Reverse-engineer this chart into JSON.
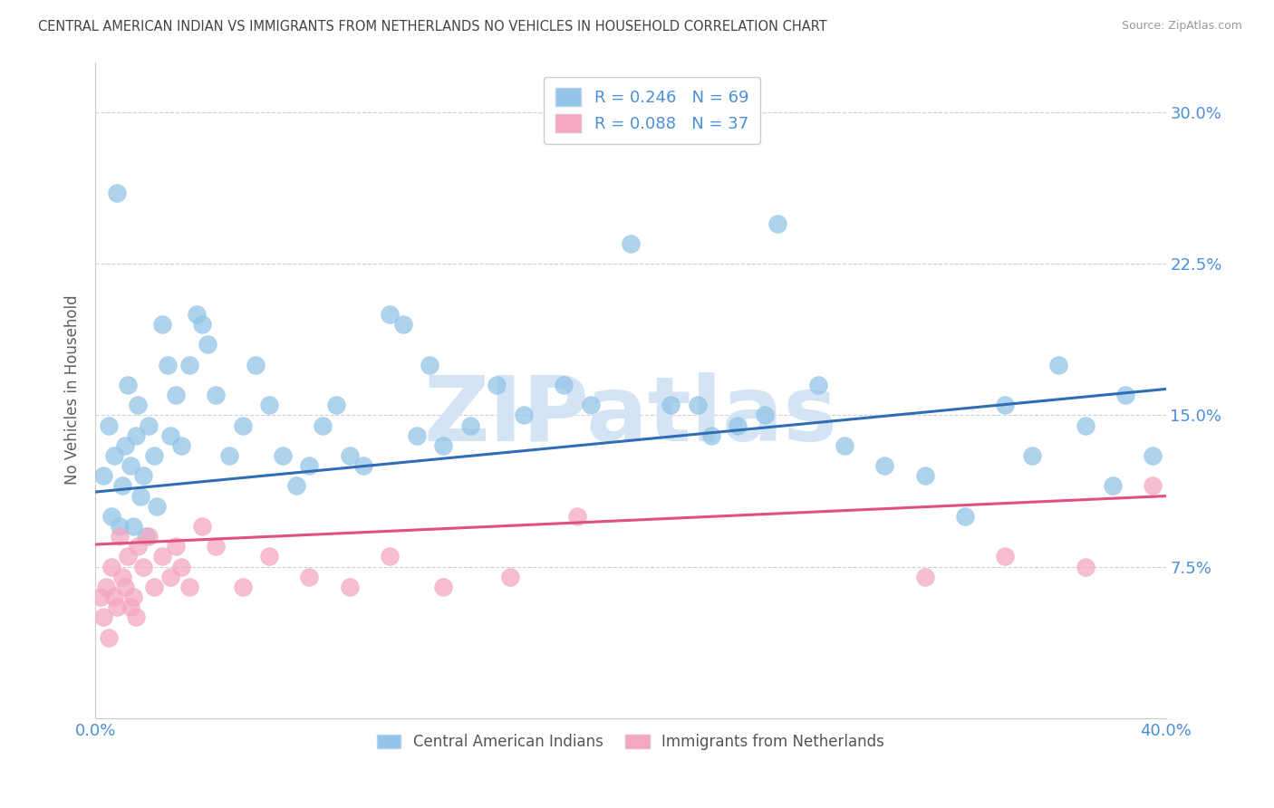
{
  "title": "CENTRAL AMERICAN INDIAN VS IMMIGRANTS FROM NETHERLANDS NO VEHICLES IN HOUSEHOLD CORRELATION CHART",
  "source": "Source: ZipAtlas.com",
  "ylabel": "No Vehicles in Household",
  "xlim": [
    0.0,
    0.4
  ],
  "ylim": [
    0.0,
    0.325
  ],
  "xticks": [
    0.0,
    0.1,
    0.2,
    0.3,
    0.4
  ],
  "xticklabels": [
    "0.0%",
    "",
    "",
    "",
    "40.0%"
  ],
  "yticks": [
    0.0,
    0.075,
    0.15,
    0.225,
    0.3
  ],
  "yticklabels_right": [
    "",
    "7.5%",
    "15.0%",
    "22.5%",
    "30.0%"
  ],
  "legend1_label": "R = 0.246   N = 69",
  "legend2_label": "R = 0.088   N = 37",
  "scatter1_color": "#93c5e8",
  "scatter2_color": "#f4a8c0",
  "trend1_color": "#2f6db5",
  "trend2_color": "#e05080",
  "watermark": "ZIPatlas",
  "watermark_color": "#d4e4f4",
  "background_color": "#ffffff",
  "grid_color": "#d0d0d0",
  "title_color": "#444444",
  "axis_label_color": "#606060",
  "tick_label_color": "#4a90d9",
  "legend_text_color": "#4a90d9",
  "blue_trend_start": 0.112,
  "blue_trend_end": 0.163,
  "pink_trend_start": 0.086,
  "pink_trend_end": 0.11,
  "blue_x": [
    0.003,
    0.005,
    0.006,
    0.007,
    0.008,
    0.009,
    0.01,
    0.011,
    0.012,
    0.013,
    0.014,
    0.015,
    0.016,
    0.017,
    0.018,
    0.019,
    0.02,
    0.022,
    0.023,
    0.025,
    0.027,
    0.028,
    0.03,
    0.032,
    0.035,
    0.038,
    0.04,
    0.042,
    0.045,
    0.05,
    0.055,
    0.06,
    0.065,
    0.07,
    0.075,
    0.08,
    0.085,
    0.09,
    0.095,
    0.1,
    0.11,
    0.115,
    0.12,
    0.125,
    0.13,
    0.14,
    0.15,
    0.16,
    0.175,
    0.185,
    0.2,
    0.215,
    0.225,
    0.23,
    0.24,
    0.25,
    0.255,
    0.27,
    0.28,
    0.295,
    0.31,
    0.325,
    0.34,
    0.35,
    0.36,
    0.37,
    0.38,
    0.385,
    0.395
  ],
  "blue_y": [
    0.12,
    0.145,
    0.1,
    0.13,
    0.26,
    0.095,
    0.115,
    0.135,
    0.165,
    0.125,
    0.095,
    0.14,
    0.155,
    0.11,
    0.12,
    0.09,
    0.145,
    0.13,
    0.105,
    0.195,
    0.175,
    0.14,
    0.16,
    0.135,
    0.175,
    0.2,
    0.195,
    0.185,
    0.16,
    0.13,
    0.145,
    0.175,
    0.155,
    0.13,
    0.115,
    0.125,
    0.145,
    0.155,
    0.13,
    0.125,
    0.2,
    0.195,
    0.14,
    0.175,
    0.135,
    0.145,
    0.165,
    0.15,
    0.165,
    0.155,
    0.235,
    0.155,
    0.155,
    0.14,
    0.145,
    0.15,
    0.245,
    0.165,
    0.135,
    0.125,
    0.12,
    0.1,
    0.155,
    0.13,
    0.175,
    0.145,
    0.115,
    0.16,
    0.13
  ],
  "pink_x": [
    0.002,
    0.003,
    0.004,
    0.005,
    0.006,
    0.007,
    0.008,
    0.009,
    0.01,
    0.011,
    0.012,
    0.013,
    0.014,
    0.015,
    0.016,
    0.018,
    0.02,
    0.022,
    0.025,
    0.028,
    0.03,
    0.032,
    0.035,
    0.04,
    0.045,
    0.055,
    0.065,
    0.08,
    0.095,
    0.11,
    0.13,
    0.155,
    0.18,
    0.31,
    0.34,
    0.37,
    0.395
  ],
  "pink_y": [
    0.06,
    0.05,
    0.065,
    0.04,
    0.075,
    0.06,
    0.055,
    0.09,
    0.07,
    0.065,
    0.08,
    0.055,
    0.06,
    0.05,
    0.085,
    0.075,
    0.09,
    0.065,
    0.08,
    0.07,
    0.085,
    0.075,
    0.065,
    0.095,
    0.085,
    0.065,
    0.08,
    0.07,
    0.065,
    0.08,
    0.065,
    0.07,
    0.1,
    0.07,
    0.08,
    0.075,
    0.115
  ]
}
